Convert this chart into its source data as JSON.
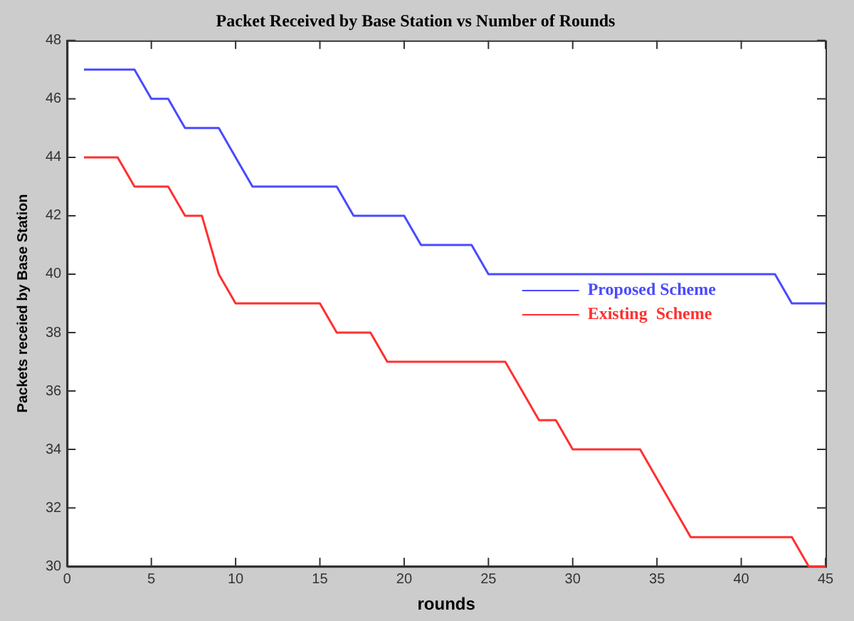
{
  "chart_data": {
    "type": "line",
    "title": "Packet Received by Base Station vs Number of Rounds",
    "xlabel": "rounds",
    "ylabel": "Packets receied by Base Station",
    "x": [
      1,
      2,
      3,
      4,
      5,
      6,
      7,
      8,
      9,
      10,
      11,
      12,
      13,
      14,
      15,
      16,
      17,
      18,
      19,
      20,
      21,
      22,
      23,
      24,
      25,
      26,
      27,
      28,
      29,
      30,
      31,
      32,
      33,
      34,
      35,
      36,
      37,
      38,
      39,
      40,
      41,
      42,
      43,
      44,
      45
    ],
    "series": [
      {
        "name": "Proposed Scheme",
        "color": "#4a4aff",
        "values": [
          47,
          47,
          47,
          47,
          46,
          46,
          45,
          45,
          45,
          44,
          43,
          43,
          43,
          43,
          43,
          43,
          42,
          42,
          42,
          42,
          41,
          41,
          41,
          41,
          40,
          40,
          40,
          40,
          40,
          40,
          40,
          40,
          40,
          40,
          40,
          40,
          40,
          40,
          40,
          40,
          40,
          40,
          39,
          39,
          39
        ]
      },
      {
        "name": "Existing  Scheme",
        "color": "#ff3030",
        "values": [
          44,
          44,
          44,
          43,
          43,
          43,
          42,
          42,
          40,
          39,
          39,
          39,
          39,
          39,
          39,
          38,
          38,
          38,
          37,
          37,
          37,
          37,
          37,
          37,
          37,
          37,
          36,
          35,
          35,
          34,
          34,
          34,
          34,
          34,
          33,
          32,
          31,
          31,
          31,
          31,
          31,
          31,
          31,
          30,
          30
        ]
      }
    ],
    "xlim": [
      0,
      45
    ],
    "xticks": [
      0,
      5,
      10,
      15,
      20,
      25,
      30,
      35,
      40,
      45
    ],
    "ylim": [
      30,
      48
    ],
    "yticks": [
      30,
      32,
      34,
      36,
      38,
      40,
      42,
      44,
      46,
      48
    ],
    "grid": false,
    "legend": "right",
    "marker": "none",
    "line_style": "solid"
  }
}
